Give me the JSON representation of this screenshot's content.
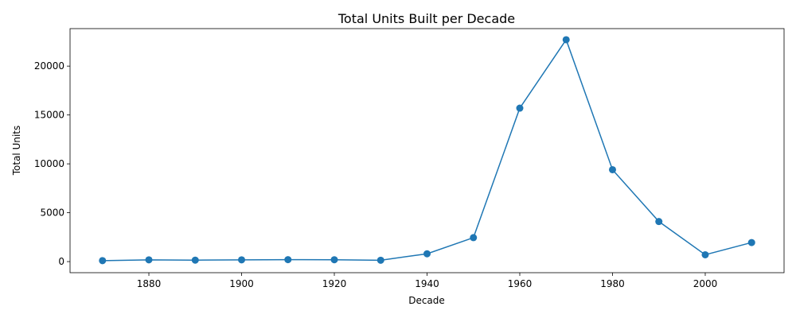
{
  "chart_data": {
    "type": "line",
    "title": "Total Units Built per Decade",
    "xlabel": "Decade",
    "ylabel": "Total Units",
    "x": [
      1870,
      1880,
      1890,
      1900,
      1910,
      1920,
      1930,
      1940,
      1950,
      1960,
      1970,
      1980,
      1990,
      2000,
      2010
    ],
    "series": [
      {
        "values": [
          100,
          180,
          150,
          180,
          200,
          190,
          140,
          800,
          2450,
          15700,
          22700,
          9400,
          4100,
          700,
          1950
        ]
      }
    ],
    "xlim": [
      1863,
      2017
    ],
    "ylim": [
      -1135,
      23835
    ],
    "x_ticks": [
      1880,
      1900,
      1920,
      1940,
      1960,
      1980,
      2000
    ],
    "y_ticks": [
      0,
      5000,
      10000,
      15000,
      20000
    ],
    "grid": false,
    "marker": "circle",
    "line_color": "#1f77b4"
  }
}
